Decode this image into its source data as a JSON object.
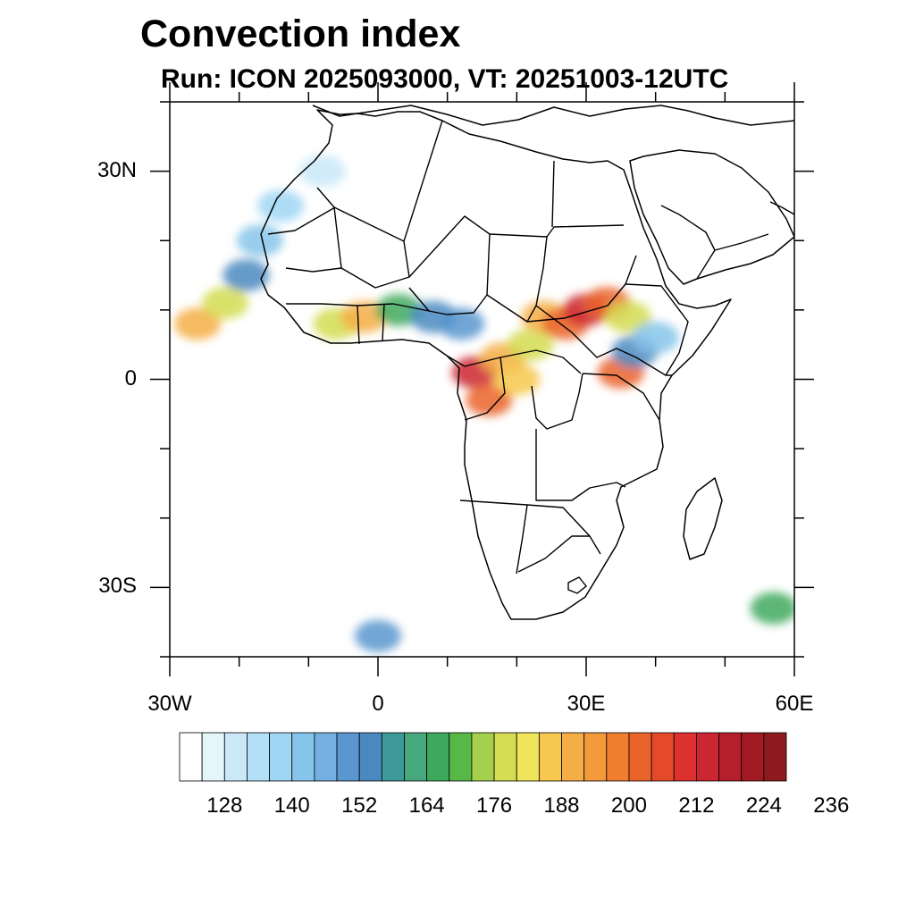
{
  "title": "Convection index",
  "subtitle": "Run: ICON 2025093000,  VT: 20251003-12UTC",
  "axes": {
    "lon_range": [
      -30,
      60
    ],
    "lat_range": [
      -40,
      40
    ],
    "x_ticks": [
      {
        "lon": -30,
        "label": "30W"
      },
      {
        "lon": 0,
        "label": "0"
      },
      {
        "lon": 30,
        "label": "30E"
      },
      {
        "lon": 60,
        "label": "60E"
      }
    ],
    "y_ticks": [
      {
        "lat": 30,
        "label": "30N"
      },
      {
        "lat": 0,
        "label": "0"
      },
      {
        "lat": -30,
        "label": "30S"
      }
    ],
    "minor_step_deg": 10
  },
  "colorbar": {
    "colors": [
      "#ffffff",
      "#e6f5fc",
      "#c9e9f8",
      "#b3e0f6",
      "#9ed6f4",
      "#86c4ea",
      "#73afe0",
      "#5a97cf",
      "#4a89c0",
      "#3e9a9a",
      "#47a77d",
      "#3ea95d",
      "#57b848",
      "#a7cf4e",
      "#d4dc52",
      "#f0e45a",
      "#f6c84e",
      "#f5ae45",
      "#f29a3c",
      "#ef7f2f",
      "#ea632a",
      "#e44a2a",
      "#dd3030",
      "#cc2630",
      "#b51f2b",
      "#a21b24",
      "#8c1a1e"
    ],
    "labels": [
      "128",
      "140",
      "152",
      "164",
      "176",
      "188",
      "200",
      "212",
      "224",
      "236"
    ]
  },
  "chart_data": {
    "type": "heatmap",
    "title": "Convection index",
    "subtitle": "Run: ICON 2025093000,  VT: 20251003-12UTC",
    "x_range_lon": [
      -30,
      60
    ],
    "y_range_lat": [
      -40,
      40
    ],
    "colorbar_labels": [
      128,
      140,
      152,
      164,
      176,
      188,
      200,
      212,
      224,
      236
    ],
    "cells": [
      {
        "lon": -26,
        "lat": 8,
        "value": 188
      },
      {
        "lon": -22,
        "lat": 11,
        "value": 176
      },
      {
        "lon": -19,
        "lat": 15,
        "value": 152
      },
      {
        "lon": -17,
        "lat": 20,
        "value": 140
      },
      {
        "lon": -14,
        "lat": 25,
        "value": 134
      },
      {
        "lon": -8,
        "lat": 30,
        "value": 128
      },
      {
        "lon": -6,
        "lat": 8,
        "value": 176
      },
      {
        "lon": -2,
        "lat": 9,
        "value": 188
      },
      {
        "lon": 3,
        "lat": 10,
        "value": 164
      },
      {
        "lon": 8,
        "lat": 9,
        "value": 152
      },
      {
        "lon": 12,
        "lat": 8,
        "value": 146
      },
      {
        "lon": 14,
        "lat": 1,
        "value": 212
      },
      {
        "lon": 16,
        "lat": -3,
        "value": 200
      },
      {
        "lon": 18,
        "lat": 3,
        "value": 188
      },
      {
        "lon": 20,
        "lat": 0,
        "value": 182
      },
      {
        "lon": 22,
        "lat": 5,
        "value": 176
      },
      {
        "lon": 24,
        "lat": 9,
        "value": 188
      },
      {
        "lon": 27,
        "lat": 8,
        "value": 200
      },
      {
        "lon": 30,
        "lat": 10,
        "value": 212
      },
      {
        "lon": 33,
        "lat": 11,
        "value": 200
      },
      {
        "lon": 36,
        "lat": 9,
        "value": 176
      },
      {
        "lon": 35,
        "lat": 1,
        "value": 200
      },
      {
        "lon": 37,
        "lat": 4,
        "value": 152
      },
      {
        "lon": 40,
        "lat": 6,
        "value": 140
      },
      {
        "lon": 57,
        "lat": -33,
        "value": 164
      },
      {
        "lon": 0,
        "lat": -37,
        "value": 146
      }
    ]
  }
}
